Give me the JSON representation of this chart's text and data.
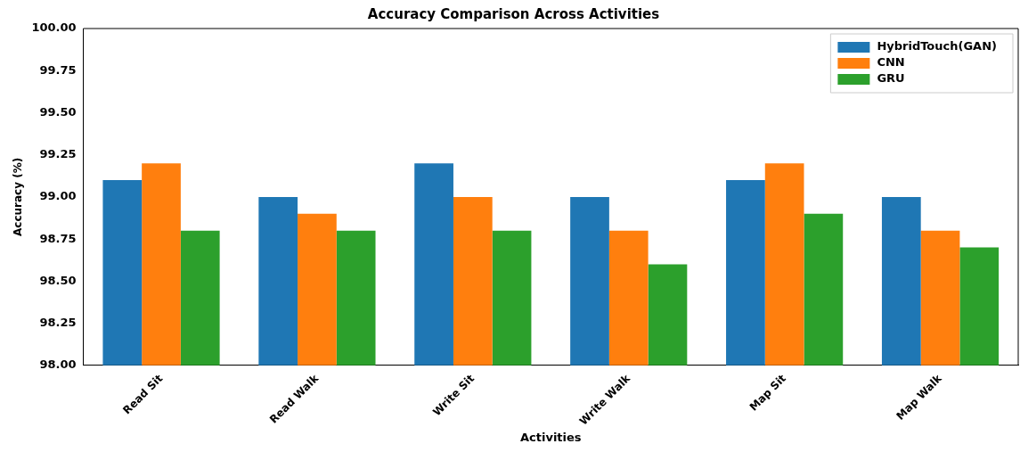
{
  "chart_data": {
    "type": "bar",
    "title": "Accuracy Comparison Across Activities",
    "xlabel": "Activities",
    "ylabel": "Accuracy (%)",
    "categories": [
      "Read Sit",
      "Read Walk",
      "Write Sit",
      "Write Walk",
      "Map Sit",
      "Map Walk"
    ],
    "series": [
      {
        "name": "HybridTouch(GAN)",
        "color": "#1f77b4",
        "values": [
          99.1,
          99.0,
          99.2,
          99.0,
          99.1,
          99.0
        ]
      },
      {
        "name": "CNN",
        "color": "#ff7f0e",
        "values": [
          99.2,
          98.9,
          99.0,
          98.8,
          99.2,
          98.8
        ]
      },
      {
        "name": "GRU",
        "color": "#2ca02c",
        "values": [
          98.8,
          98.8,
          98.8,
          98.6,
          98.9,
          98.7
        ]
      }
    ],
    "ylim": [
      98.0,
      100.0
    ],
    "yticks": [
      {
        "value": 98,
        "label": "98.00"
      },
      {
        "value": 98.25,
        "label": "98.25"
      },
      {
        "value": 98.5,
        "label": "98.50"
      },
      {
        "value": 98.75,
        "label": "98.75"
      },
      {
        "value": 99,
        "label": "99.00"
      },
      {
        "value": 99.25,
        "label": "99.25"
      },
      {
        "value": 99.5,
        "label": "99.50"
      },
      {
        "value": 99.75,
        "label": "99.75"
      },
      {
        "value": 100,
        "label": "100.00"
      }
    ],
    "grid": false,
    "legend": "top right"
  }
}
